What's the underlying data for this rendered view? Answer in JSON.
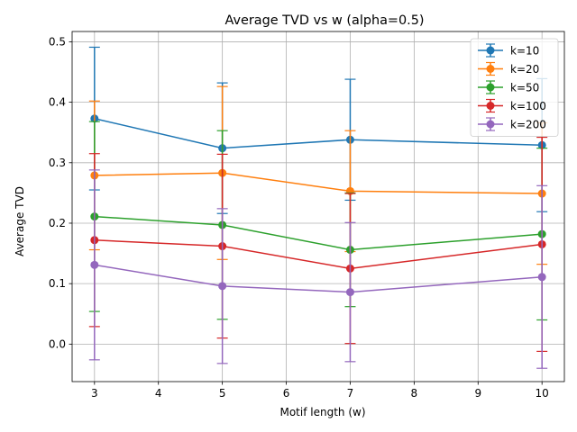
{
  "chart_data": {
    "type": "line",
    "title": "Average TVD vs w (alpha=0.5)",
    "xlabel": "Motif length (w)",
    "ylabel": "Average TVD",
    "xlim": [
      2.65,
      10.35
    ],
    "ylim": [
      -0.062,
      0.517
    ],
    "xticks": [
      3,
      4,
      5,
      6,
      7,
      8,
      9,
      10
    ],
    "xtick_labels": [
      "3",
      "4",
      "5",
      "6",
      "7",
      "8",
      "9",
      "10"
    ],
    "yticks": [
      0.0,
      0.1,
      0.2,
      0.3,
      0.4,
      0.5
    ],
    "ytick_labels": [
      "0.0",
      "0.1",
      "0.2",
      "0.3",
      "0.4",
      "0.5"
    ],
    "grid": true,
    "legend_position": "upper right",
    "x": [
      3,
      5,
      7,
      10
    ],
    "series": [
      {
        "name": "k=10",
        "color": "#1f77b4",
        "values": [
          0.373,
          0.324,
          0.338,
          0.329
        ],
        "err": [
          0.118,
          0.108,
          0.1,
          0.11
        ]
      },
      {
        "name": "k=20",
        "color": "#ff7f0e",
        "values": [
          0.279,
          0.283,
          0.253,
          0.249
        ],
        "err": [
          0.123,
          0.143,
          0.1,
          0.117
        ]
      },
      {
        "name": "k=50",
        "color": "#2ca02c",
        "values": [
          0.211,
          0.197,
          0.156,
          0.182
        ],
        "err": [
          0.157,
          0.156,
          0.094,
          0.142
        ]
      },
      {
        "name": "k=100",
        "color": "#d62728",
        "values": [
          0.172,
          0.162,
          0.125,
          0.165
        ],
        "err": [
          0.143,
          0.152,
          0.124,
          0.177
        ]
      },
      {
        "name": "k=200",
        "color": "#9467bd",
        "values": [
          0.131,
          0.096,
          0.086,
          0.111
        ],
        "err": [
          0.157,
          0.128,
          0.115,
          0.151
        ]
      }
    ]
  }
}
